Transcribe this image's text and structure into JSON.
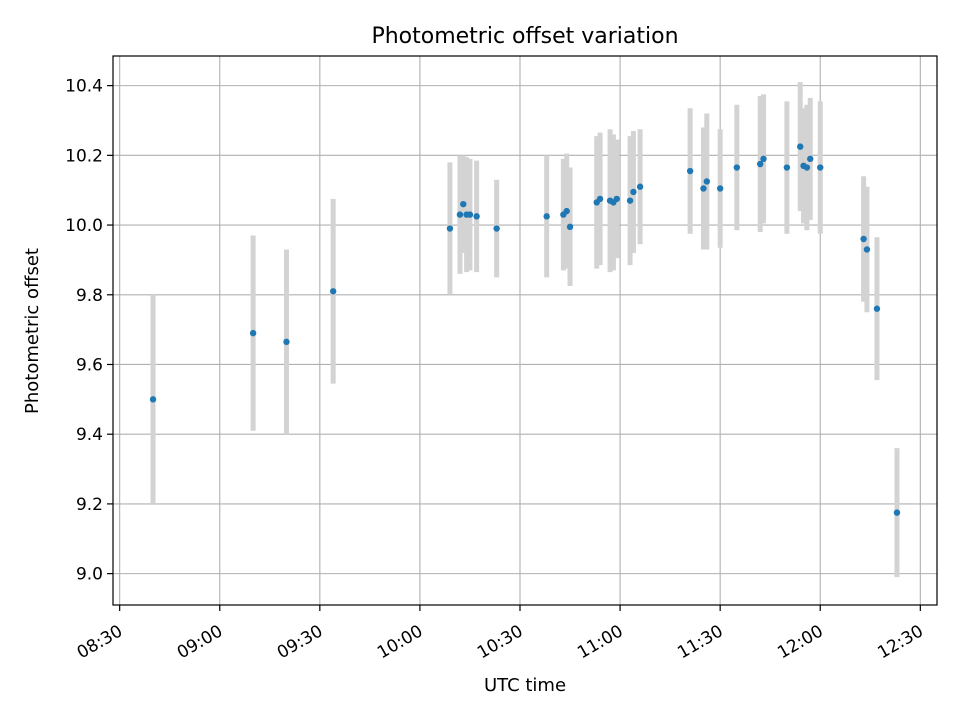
{
  "chart_data": {
    "type": "scatter",
    "title": "Photometric offset variation",
    "xlabel": "UTC time",
    "ylabel": "Photometric offset",
    "xlim": [
      "08:28",
      "12:35"
    ],
    "ylim": [
      8.91,
      10.485
    ],
    "x_ticks": [
      "08:30",
      "09:00",
      "09:30",
      "10:00",
      "10:30",
      "11:00",
      "11:30",
      "12:00",
      "12:30"
    ],
    "y_ticks": [
      "9.0",
      "9.2",
      "9.4",
      "9.6",
      "9.8",
      "10.0",
      "10.2",
      "10.4"
    ],
    "grid": true,
    "series": [
      {
        "marker_color": "#1f77b4",
        "errorbar_color": "#d3d3d3",
        "points": [
          {
            "x": "08:40",
            "y": 9.5,
            "err": 0.3
          },
          {
            "x": "09:10",
            "y": 9.69,
            "err": 0.28
          },
          {
            "x": "09:20",
            "y": 9.665,
            "err": 0.265
          },
          {
            "x": "09:34",
            "y": 9.81,
            "err": 0.265
          },
          {
            "x": "10:09",
            "y": 9.99,
            "err": 0.19
          },
          {
            "x": "10:12",
            "y": 10.03,
            "err": 0.17
          },
          {
            "x": "10:13",
            "y": 10.06,
            "err": 0.14
          },
          {
            "x": "10:14",
            "y": 10.03,
            "err": 0.165
          },
          {
            "x": "10:15",
            "y": 10.03,
            "err": 0.16
          },
          {
            "x": "10:17",
            "y": 10.025,
            "err": 0.16
          },
          {
            "x": "10:23",
            "y": 9.99,
            "err": 0.14
          },
          {
            "x": "10:38",
            "y": 10.025,
            "err": 0.175
          },
          {
            "x": "10:43",
            "y": 10.03,
            "err": 0.16
          },
          {
            "x": "10:44",
            "y": 10.04,
            "err": 0.165
          },
          {
            "x": "10:45",
            "y": 9.995,
            "err": 0.17
          },
          {
            "x": "10:53",
            "y": 10.065,
            "err": 0.19
          },
          {
            "x": "10:54",
            "y": 10.075,
            "err": 0.19
          },
          {
            "x": "10:57",
            "y": 10.07,
            "err": 0.205
          },
          {
            "x": "10:58",
            "y": 10.065,
            "err": 0.195
          },
          {
            "x": "10:59",
            "y": 10.075,
            "err": 0.17
          },
          {
            "x": "11:03",
            "y": 10.07,
            "err": 0.185
          },
          {
            "x": "11:04",
            "y": 10.095,
            "err": 0.175
          },
          {
            "x": "11:06",
            "y": 10.11,
            "err": 0.165
          },
          {
            "x": "11:21",
            "y": 10.155,
            "err": 0.18
          },
          {
            "x": "11:25",
            "y": 10.105,
            "err": 0.175
          },
          {
            "x": "11:26",
            "y": 10.125,
            "err": 0.195
          },
          {
            "x": "11:30",
            "y": 10.105,
            "err": 0.17
          },
          {
            "x": "11:35",
            "y": 10.165,
            "err": 0.18
          },
          {
            "x": "11:42",
            "y": 10.175,
            "err": 0.195
          },
          {
            "x": "11:43",
            "y": 10.19,
            "err": 0.185
          },
          {
            "x": "11:50",
            "y": 10.165,
            "err": 0.19
          },
          {
            "x": "11:54",
            "y": 10.225,
            "err": 0.185
          },
          {
            "x": "11:55",
            "y": 10.17,
            "err": 0.165
          },
          {
            "x": "11:56",
            "y": 10.165,
            "err": 0.18
          },
          {
            "x": "11:57",
            "y": 10.19,
            "err": 0.175
          },
          {
            "x": "12:00",
            "y": 10.165,
            "err": 0.19
          },
          {
            "x": "12:13",
            "y": 9.96,
            "err": 0.18
          },
          {
            "x": "12:14",
            "y": 9.93,
            "err": 0.18
          },
          {
            "x": "12:17",
            "y": 9.76,
            "err": 0.205
          },
          {
            "x": "12:23",
            "y": 9.175,
            "err": 0.185
          }
        ]
      }
    ]
  }
}
